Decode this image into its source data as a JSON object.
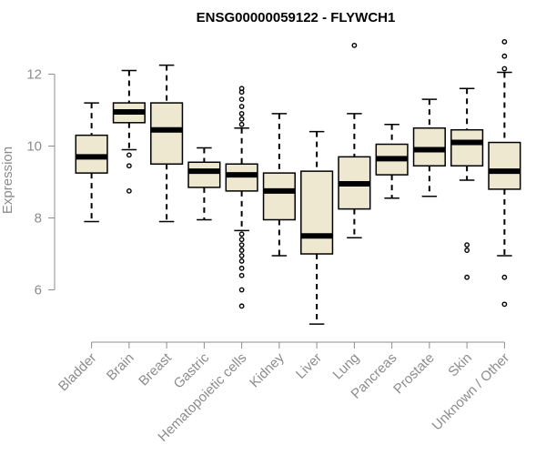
{
  "chart_data": {
    "type": "boxplot",
    "title": "ENSG00000059122 - FLYWCH1",
    "xlabel": "",
    "ylabel": "Expression",
    "ylim": [
      4.9,
      13.1
    ],
    "yticks": [
      6,
      8,
      10,
      12
    ],
    "colors": {
      "box_fill": "#efe8d0",
      "box_stroke": "#000000",
      "axis": "#8c8c8c"
    },
    "categories": [
      "Bladder",
      "Brain",
      "Breast",
      "Gastric",
      "Hematopoietic cells",
      "Kidney",
      "Liver",
      "Lung",
      "Pancreas",
      "Prostate",
      "Skin",
      "Unknown / Other"
    ],
    "boxes": [
      {
        "label": "Bladder",
        "whisker_low": 7.9,
        "q1": 9.25,
        "median": 9.7,
        "q3": 10.3,
        "whisker_high": 11.2,
        "outliers": []
      },
      {
        "label": "Brain",
        "whisker_low": 9.9,
        "q1": 10.65,
        "median": 10.95,
        "q3": 11.2,
        "whisker_high": 12.1,
        "outliers": [
          9.75,
          9.45,
          8.75
        ]
      },
      {
        "label": "Breast",
        "whisker_low": 7.9,
        "q1": 9.5,
        "median": 10.45,
        "q3": 11.2,
        "whisker_high": 12.25,
        "outliers": []
      },
      {
        "label": "Gastric",
        "whisker_low": 7.95,
        "q1": 8.85,
        "median": 9.3,
        "q3": 9.55,
        "whisker_high": 9.95,
        "outliers": []
      },
      {
        "label": "Hematopoietic cells",
        "whisker_low": 7.65,
        "q1": 8.75,
        "median": 9.2,
        "q3": 9.5,
        "whisker_high": 10.5,
        "outliers": [
          11.6,
          11.5,
          11.3,
          11.1,
          10.9,
          10.75,
          10.6,
          7.55,
          7.4,
          7.25,
          7.1,
          6.95,
          6.8,
          6.6,
          6.4,
          6.0,
          5.55
        ]
      },
      {
        "label": "Kidney",
        "whisker_low": 6.95,
        "q1": 7.95,
        "median": 8.75,
        "q3": 9.25,
        "whisker_high": 10.9,
        "outliers": []
      },
      {
        "label": "Liver",
        "whisker_low": 5.05,
        "q1": 7.0,
        "median": 7.5,
        "q3": 9.3,
        "whisker_high": 10.4,
        "outliers": []
      },
      {
        "label": "Lung",
        "whisker_low": 7.45,
        "q1": 8.25,
        "median": 8.95,
        "q3": 9.7,
        "whisker_high": 10.9,
        "outliers": [
          12.8
        ]
      },
      {
        "label": "Pancreas",
        "whisker_low": 8.55,
        "q1": 9.2,
        "median": 9.65,
        "q3": 10.05,
        "whisker_high": 10.6,
        "outliers": []
      },
      {
        "label": "Prostate",
        "whisker_low": 8.6,
        "q1": 9.45,
        "median": 9.9,
        "q3": 10.5,
        "whisker_high": 11.3,
        "outliers": []
      },
      {
        "label": "Skin",
        "whisker_low": 9.05,
        "q1": 9.45,
        "median": 10.1,
        "q3": 10.45,
        "whisker_high": 11.6,
        "outliers": [
          7.25,
          7.1,
          6.35
        ]
      },
      {
        "label": "Unknown / Other",
        "whisker_low": 6.95,
        "q1": 8.8,
        "median": 9.3,
        "q3": 10.1,
        "whisker_high": 12.05,
        "outliers": [
          12.9,
          12.5,
          12.15,
          6.35,
          5.6
        ]
      }
    ]
  }
}
